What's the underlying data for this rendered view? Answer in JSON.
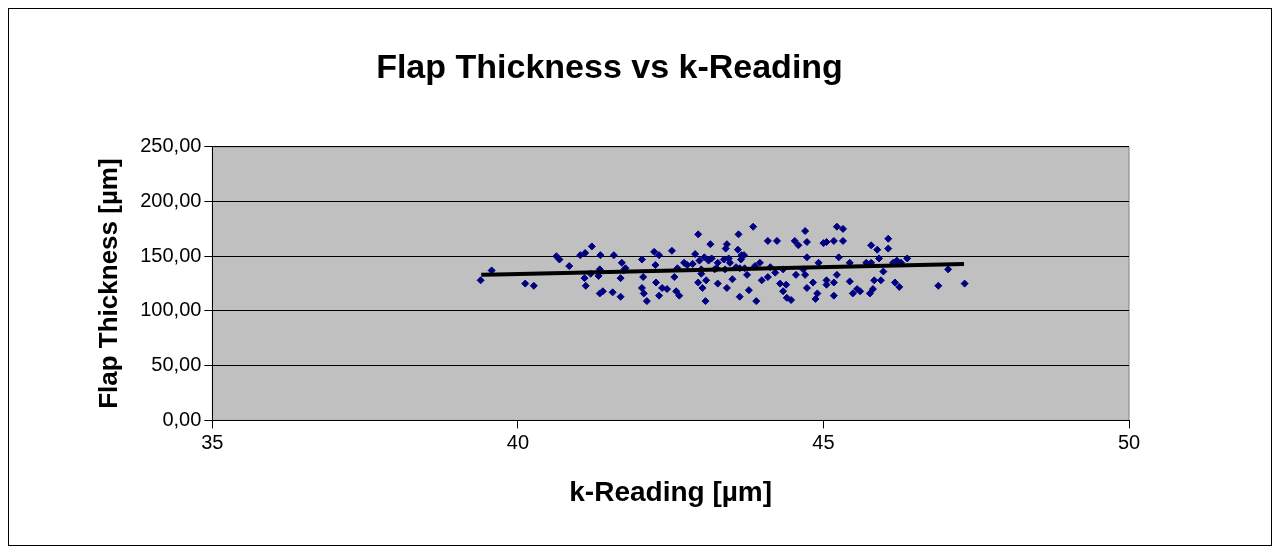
{
  "chart_data": {
    "type": "scatter",
    "title": "Flap Thickness vs k-Reading",
    "xlabel": "k-Reading [µm]",
    "ylabel": "Flap Thickness [µm]",
    "xlim": [
      35,
      50
    ],
    "xticks": [
      35,
      40,
      45,
      50
    ],
    "ylim": [
      0,
      250
    ],
    "yticks": [
      {
        "value": 0,
        "label": "0,00"
      },
      {
        "value": 50,
        "label": "50,00"
      },
      {
        "value": 100,
        "label": "100,00"
      },
      {
        "value": 150,
        "label": "150,00"
      },
      {
        "value": 200,
        "label": "200,00"
      },
      {
        "value": 250,
        "label": "250,00"
      }
    ],
    "grid": "y",
    "legend": false,
    "marker": "diamond",
    "series": [
      {
        "type": "scatter",
        "color": "#000080",
        "x": [
          39.39,
          39.57,
          40.12,
          40.26,
          40.63,
          40.68,
          40.84,
          41.02,
          41.09,
          41.11,
          41.19,
          41.32,
          41.34,
          41.21,
          41.1,
          41.35,
          41.57,
          41.68,
          41.34,
          41.39,
          41.55,
          41.68,
          41.73,
          41.7,
          41.76,
          42.03,
          42.05,
          42.03,
          42.06,
          42.11,
          42.23,
          42.31,
          42.25,
          42.26,
          42.31,
          42.36,
          42.44,
          42.52,
          42.56,
          42.61,
          42.59,
          42.64,
          42.72,
          42.77,
          42.86,
          42.9,
          42.95,
          42.95,
          42.97,
          43.0,
          43.0,
          43.05,
          43.02,
          43.07,
          43.08,
          43.12,
          43.15,
          43.17,
          43.22,
          43.25,
          43.27,
          43.27,
          43.37,
          43.42,
          43.39,
          43.4,
          43.45,
          43.51,
          43.42,
          43.47,
          43.57,
          43.6,
          43.63,
          43.63,
          43.61,
          43.65,
          43.66,
          43.7,
          43.71,
          43.75,
          43.78,
          43.85,
          43.88,
          43.9,
          43.96,
          43.99,
          44.09,
          44.13,
          44.09,
          44.24,
          44.21,
          44.29,
          44.34,
          44.34,
          44.39,
          44.4,
          44.47,
          44.55,
          44.53,
          44.7,
          44.59,
          44.73,
          44.7,
          44.67,
          44.73,
          44.73,
          44.87,
          44.83,
          44.92,
          44.9,
          45.05,
          45.05,
          45.0,
          45.05,
          45.17,
          45.17,
          45.22,
          45.17,
          45.22,
          45.25,
          45.32,
          45.32,
          45.43,
          45.43,
          45.48,
          45.55,
          45.6,
          45.7,
          45.78,
          45.78,
          45.88,
          45.76,
          45.81,
          45.83,
          45.91,
          45.94,
          45.98,
          46.06,
          46.06,
          46.17,
          46.2,
          46.24,
          46.14,
          46.27,
          46.37,
          46.88,
          47.04,
          47.31
        ],
        "values": [
          128,
          137,
          125,
          123,
          150,
          147,
          141,
          151,
          130,
          123,
          134,
          132,
          138,
          159,
          153,
          151,
          151,
          130,
          116,
          118,
          117,
          113,
          137,
          144,
          139,
          147,
          131,
          121,
          116,
          109,
          154,
          151,
          142,
          126,
          114,
          121,
          120,
          155,
          131,
          139,
          118,
          114,
          144,
          142,
          143,
          152,
          126,
          170,
          146,
          138,
          134,
          149,
          121,
          109,
          128,
          146,
          161,
          148,
          138,
          139,
          125,
          144,
          147,
          161,
          138,
          157,
          148,
          129,
          121,
          144,
          140,
          156,
          139,
          113,
          170,
          147,
          151,
          151,
          139,
          133,
          119,
          177,
          141,
          109,
          144,
          128,
          131,
          140,
          164,
          164,
          135,
          125,
          138,
          118,
          124,
          112,
          110,
          133,
          164,
          173,
          160,
          163,
          133,
          138,
          149,
          121,
          111,
          126,
          144,
          116,
          128,
          124,
          162,
          163,
          114,
          126,
          133,
          164,
          177,
          149,
          175,
          164,
          144,
          127,
          116,
          120,
          118,
          144,
          144,
          160,
          156,
          116,
          120,
          128,
          148,
          128,
          136,
          157,
          166,
          126,
          146,
          122,
          144,
          144,
          148,
          123,
          138,
          125
        ]
      },
      {
        "type": "line",
        "color": "#000000",
        "marker": "none",
        "x": [
          39.4,
          47.3
        ],
        "values": [
          133,
          143
        ]
      }
    ]
  }
}
